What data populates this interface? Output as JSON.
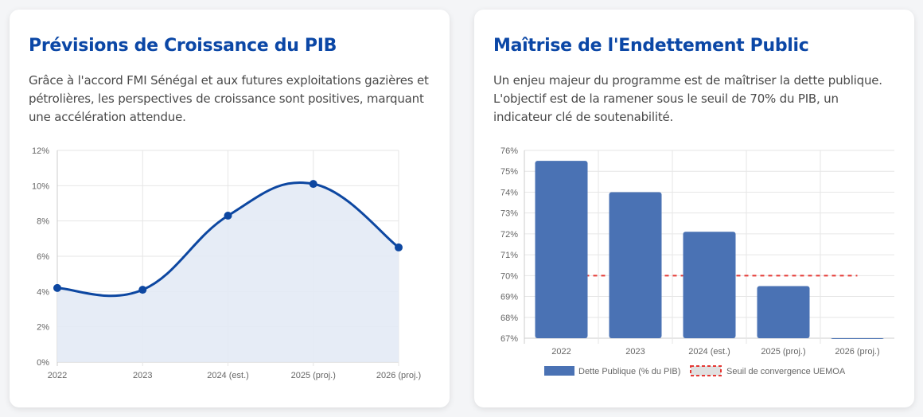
{
  "cards": [
    {
      "title": "Prévisions de Croissance du PIB",
      "description": "Grâce à l'accord FMI Sénégal et aux futures exploitations gazières et pétrolières, les perspectives de croissance sont positives, marquant une accélération attendue."
    },
    {
      "title": "Maîtrise de l'Endettement Public",
      "description": "Un enjeu majeur du programme est de maîtriser la dette publique. L'objectif est de la ramener sous le seuil de 70% du PIB, un indicateur clé de soutenabilité."
    }
  ],
  "chart_data": [
    {
      "type": "area",
      "categories": [
        "2022",
        "2023",
        "2024 (est.)",
        "2025 (proj.)",
        "2026 (proj.)"
      ],
      "series": [
        {
          "values": [
            4.2,
            4.1,
            8.3,
            10.1,
            6.5
          ],
          "color": "#0d47a1",
          "fill": "#e3eaf5"
        }
      ],
      "ylim": [
        0,
        12
      ],
      "yticks": [
        "0%",
        "2%",
        "4%",
        "6%",
        "8%",
        "10%",
        "12%"
      ],
      "ytick_values": [
        0,
        2,
        4,
        6,
        8,
        10,
        12
      ],
      "grid": true,
      "legend": "none"
    },
    {
      "type": "bar",
      "categories": [
        "2022",
        "2023",
        "2024 (est.)",
        "2025 (proj.)",
        "2026 (proj.)"
      ],
      "series": [
        {
          "name": "Dette Publique (% du PIB)",
          "type": "bar",
          "values": [
            75.5,
            74.0,
            72.1,
            69.5,
            67.0
          ],
          "color": "#4a72b4"
        },
        {
          "name": "Seuil de convergence UEMOA",
          "type": "line-dashed",
          "values": [
            70,
            70,
            70,
            70,
            70
          ],
          "color": "#e53935"
        }
      ],
      "ylim": [
        67,
        76
      ],
      "yticks": [
        "67%",
        "68%",
        "69%",
        "70%",
        "71%",
        "72%",
        "73%",
        "74%",
        "75%",
        "76%"
      ],
      "ytick_values": [
        67,
        68,
        69,
        70,
        71,
        72,
        73,
        74,
        75,
        76
      ],
      "grid": true,
      "legend": "bottom"
    }
  ]
}
